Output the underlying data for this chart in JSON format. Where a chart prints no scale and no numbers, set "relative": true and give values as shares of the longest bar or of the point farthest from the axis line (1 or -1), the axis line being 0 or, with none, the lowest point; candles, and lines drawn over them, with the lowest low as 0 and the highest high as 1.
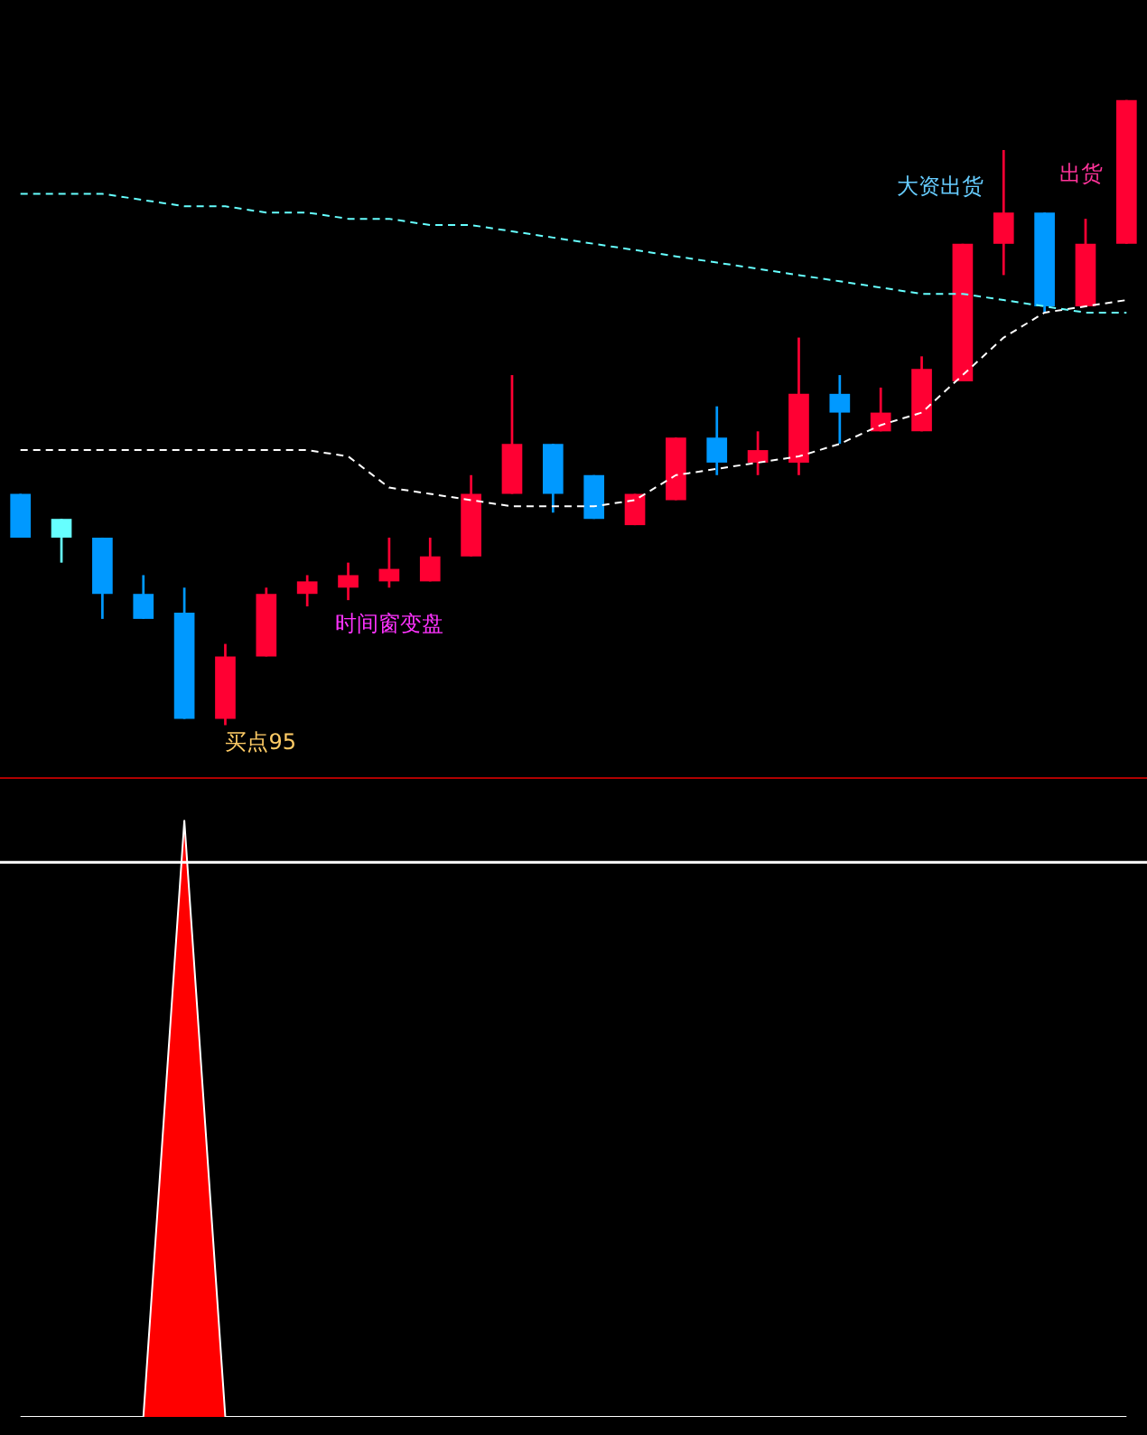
{
  "chart_data": [
    {
      "type": "candlestick",
      "relative": true,
      "categories": [
        null,
        null,
        null,
        null,
        null,
        null,
        null,
        null,
        null,
        null,
        null,
        null,
        null,
        null,
        null,
        null,
        null,
        null,
        null,
        null,
        null,
        null,
        null,
        null,
        null,
        null,
        null,
        null
      ],
      "ohlc": [
        [
          0.37,
          0.37,
          0.3,
          0.3
        ],
        [
          0.33,
          0.33,
          0.26,
          0.3
        ],
        [
          0.3,
          0.3,
          0.17,
          0.21
        ],
        [
          0.21,
          0.24,
          0.17,
          0.17
        ],
        [
          0.18,
          0.22,
          0.01,
          0.01
        ],
        [
          0.01,
          0.13,
          0,
          0.11
        ],
        [
          0.11,
          0.22,
          0.11,
          0.21
        ],
        [
          0.21,
          0.24,
          0.19,
          0.23
        ],
        [
          0.22,
          0.26,
          0.2,
          0.24
        ],
        [
          0.23,
          0.3,
          0.22,
          0.25
        ],
        [
          0.23,
          0.3,
          0.23,
          0.27
        ],
        [
          0.27,
          0.4,
          0.27,
          0.37
        ],
        [
          0.37,
          0.56,
          0.37,
          0.45
        ],
        [
          0.45,
          0.45,
          0.34,
          0.37
        ],
        [
          0.4,
          0.4,
          0.33,
          0.33
        ],
        [
          0.32,
          0.37,
          0.32,
          0.37
        ],
        [
          0.36,
          0.46,
          0.36,
          0.46
        ],
        [
          0.46,
          0.51,
          0.4,
          0.42
        ],
        [
          0.42,
          0.47,
          0.4,
          0.44
        ],
        [
          0.42,
          0.62,
          0.4,
          0.53
        ],
        [
          0.53,
          0.56,
          0.45,
          0.5
        ],
        [
          0.47,
          0.54,
          0.47,
          0.5
        ],
        [
          0.47,
          0.59,
          0.47,
          0.57
        ],
        [
          0.55,
          0.77,
          0.55,
          0.77
        ],
        [
          0.77,
          0.92,
          0.72,
          0.82
        ],
        [
          0.82,
          0.82,
          0.66,
          0.67
        ],
        [
          0.67,
          0.81,
          0.67,
          0.77
        ],
        [
          0.77,
          1,
          0.77,
          1
        ]
      ],
      "colors": [
        "#0099ff",
        "#66ffff",
        "#0099ff",
        "#0099ff",
        "#0099ff",
        "#ff0033",
        "#ff0033",
        "#ff0033",
        "#ff0033",
        "#ff0033",
        "#ff0033",
        "#ff0033",
        "#ff0033",
        "#0099ff",
        "#0099ff",
        "#ff0033",
        "#ff0033",
        "#0099ff",
        "#ff0033",
        "#ff0033",
        "#0099ff",
        "#ff0033",
        "#ff0033",
        "#ff0033",
        "#ff0033",
        "#0099ff",
        "#ff0033",
        "#ff0033"
      ],
      "series": [
        {
          "type": "line",
          "color": "#66ffff",
          "line_style": "dashed",
          "values": [
            0.85,
            0.85,
            0.85,
            0.84,
            0.83,
            0.83,
            0.82,
            0.82,
            0.81,
            0.81,
            0.8,
            0.8,
            0.79,
            0.78,
            0.77,
            0.76,
            0.75,
            0.74,
            0.73,
            0.72,
            0.71,
            0.7,
            0.69,
            0.69,
            0.68,
            0.67,
            0.66,
            0.66
          ]
        },
        {
          "type": "line",
          "color": "#ffffff",
          "line_style": "dashed",
          "values": [
            0.44,
            0.44,
            0.44,
            0.44,
            0.44,
            0.44,
            0.44,
            0.44,
            0.43,
            0.38,
            0.37,
            0.36,
            0.35,
            0.35,
            0.35,
            0.36,
            0.4,
            0.41,
            0.42,
            0.43,
            0.45,
            0.48,
            0.5,
            0.56,
            0.62,
            0.66,
            0.67,
            0.68
          ]
        }
      ],
      "annotations": [
        "买点95",
        "时间窗变盘",
        "大资出货",
        "出货"
      ]
    },
    {
      "type": "area",
      "relative": true,
      "categories": [
        null,
        null,
        null,
        null,
        null,
        null,
        null,
        null,
        null,
        null,
        null,
        null,
        null,
        null,
        null,
        null,
        null,
        null,
        null,
        null,
        null,
        null,
        null,
        null,
        null,
        null,
        null,
        null
      ],
      "series": [
        {
          "color": "#ff0000",
          "values": [
            0,
            0,
            0,
            0,
            1,
            0,
            0,
            0,
            0,
            0,
            0,
            0,
            0,
            0,
            0,
            0,
            0,
            0,
            0,
            0,
            0,
            0,
            0,
            0,
            0,
            0,
            0,
            0
          ]
        }
      ],
      "ref_lines": [
        {
          "axis": "y",
          "value": 0.93,
          "color": "#ffffff"
        }
      ]
    }
  ]
}
